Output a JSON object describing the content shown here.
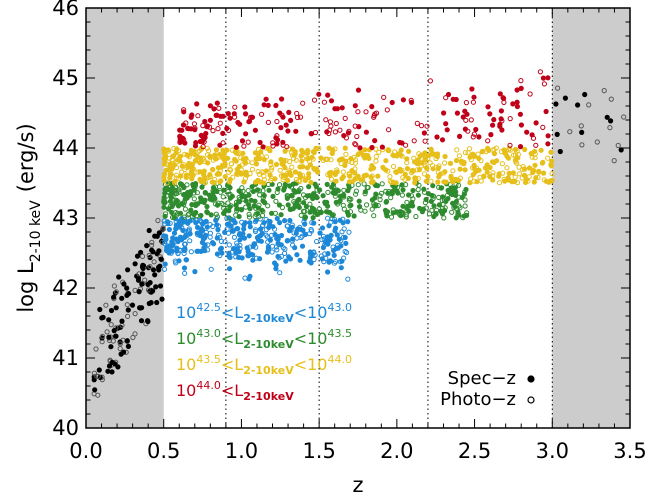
{
  "chart_data": {
    "type": "scatter",
    "xlabel": "z",
    "ylabel": {
      "main": "log L",
      "sub": "2-10 keV",
      "unit": "(erg/s)"
    },
    "xlim": [
      0.0,
      3.5
    ],
    "ylim": [
      40.0,
      46.0
    ],
    "x_ticks": [
      "0.0",
      "0.5",
      "1.0",
      "1.5",
      "2.0",
      "2.5",
      "3.0",
      "3.5"
    ],
    "y_ticks": [
      "40",
      "41",
      "42",
      "43",
      "44",
      "45",
      "46"
    ],
    "shaded_regions": [
      [
        0.0,
        0.5
      ],
      [
        3.0,
        3.5
      ]
    ],
    "shade_color": "#cccccc",
    "dotted_vlines": [
      0.9,
      1.5,
      2.2,
      3.0
    ],
    "luminosity_bins": [
      {
        "name": "blue",
        "color": "#1e88d8",
        "lmin": 42.5,
        "lmax": 43.0,
        "zmin": 0.5,
        "zmax": 1.7,
        "count": 380
      },
      {
        "name": "green",
        "color": "#2e8b2e",
        "lmin": 43.0,
        "lmax": 43.5,
        "zmin": 0.5,
        "zmax": 2.45,
        "count": 500
      },
      {
        "name": "yellow",
        "color": "#e6bf1a",
        "lmin": 43.5,
        "lmax": 44.0,
        "zmin": 0.5,
        "zmax": 3.0,
        "count": 620
      },
      {
        "name": "red",
        "color": "#c00018",
        "lmin": 44.0,
        "lmax": 45.5,
        "zmin": 0.6,
        "zmax": 3.0,
        "count": 240
      }
    ],
    "black_points": {
      "color": "#000000",
      "low_z": {
        "zmin": 0.05,
        "zmax": 0.5,
        "count": 150
      },
      "high_z": {
        "zmin": 3.0,
        "zmax": 3.5,
        "count": 22
      }
    },
    "legend": {
      "labels": [
        {
          "base1": "10",
          "exp1": "42.5",
          "mid": "<L",
          "sub": "2-10keV",
          "lt": "<10",
          "exp2": "43.0",
          "color": "#1e88d8"
        },
        {
          "base1": "10",
          "exp1": "43.0",
          "mid": "<L",
          "sub": "2-10keV",
          "lt": "<10",
          "exp2": "43.5",
          "color": "#2e8b2e"
        },
        {
          "base1": "10",
          "exp1": "43.5",
          "mid": "<L",
          "sub": "2-10keV",
          "lt": "<10",
          "exp2": "44.0",
          "color": "#e6bf1a"
        },
        {
          "base1": "10",
          "exp1": "44.0",
          "mid": "<L",
          "sub": "2-10keV",
          "lt": "",
          "exp2": "",
          "color": "#c00018"
        }
      ],
      "symbols": [
        {
          "label": "Spec−z",
          "marker": "filled-circle"
        },
        {
          "label": "Photo−z",
          "marker": "open-circle"
        }
      ]
    }
  }
}
